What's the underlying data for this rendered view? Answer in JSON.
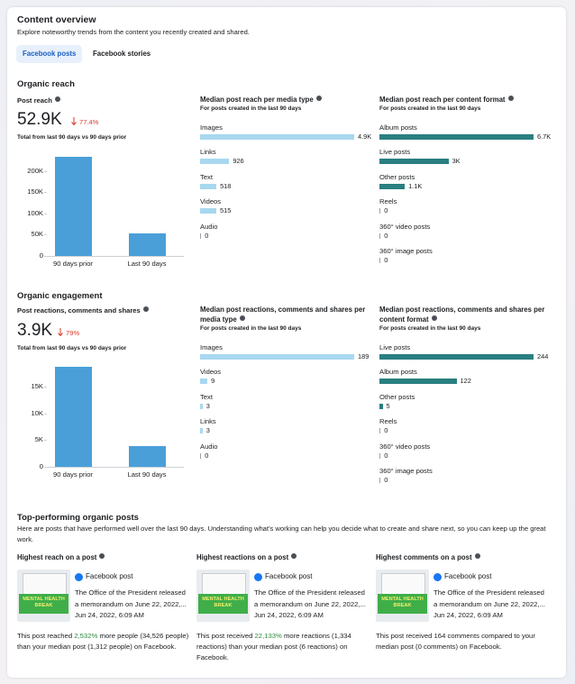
{
  "header": {
    "title": "Content overview",
    "subtitle": "Explore noteworthy trends from the content you recently created and shared."
  },
  "tabs": [
    "Facebook posts",
    "Facebook stories"
  ],
  "reach": {
    "title": "Organic reach",
    "metric_label": "Post reach",
    "metric_value": "52.9K",
    "change": "77.4%",
    "note": "Total from last 90 days vs 90 days prior"
  },
  "engagement": {
    "title": "Organic engagement",
    "metric_label": "Post reactions, comments and shares",
    "metric_value": "3.9K",
    "change": "79%",
    "note": "Total from last 90 days vs 90 days prior"
  },
  "chart_data": [
    {
      "type": "bar",
      "categories": [
        "90 days prior",
        "Last 90 days"
      ],
      "values": [
        234000,
        52900
      ],
      "color": "#4a9fd8",
      "ylim": [
        0,
        240000
      ],
      "yticks": [
        0,
        {
          "value": 50000,
          "label": "50K"
        },
        {
          "value": 100000,
          "label": "100K"
        },
        {
          "value": 150000,
          "label": "150K"
        },
        {
          "value": 200000,
          "label": "200K"
        }
      ]
    },
    {
      "type": "hbar",
      "title": "Median post reach per media type",
      "subtitle": "For posts created in the last 90 days",
      "categories": [
        "Images",
        "Links",
        "Text",
        "Videos",
        "Audio"
      ],
      "values": [
        4900,
        926,
        518,
        515,
        0
      ],
      "value_labels": [
        "4.9K",
        "926",
        "518",
        "515",
        "0"
      ],
      "color": "#a8d8ef"
    },
    {
      "type": "hbar",
      "title": "Median post reach per content format",
      "subtitle": "For posts created in the last 90 days",
      "categories": [
        "Album posts",
        "Live posts",
        "Other posts",
        "Reels",
        "360° video posts",
        "360° image posts"
      ],
      "values": [
        6700,
        3000,
        1100,
        0,
        0,
        0
      ],
      "value_labels": [
        "6.7K",
        "3K",
        "1.1K",
        "0",
        "0",
        "0"
      ],
      "color": "#2a7f80"
    },
    {
      "type": "bar",
      "categories": [
        "90 days prior",
        "Last 90 days"
      ],
      "values": [
        18600,
        3900
      ],
      "color": "#4a9fd8",
      "ylim": [
        0,
        19500
      ],
      "yticks": [
        0,
        {
          "value": 5000,
          "label": "5K"
        },
        {
          "value": 10000,
          "label": "10K"
        },
        {
          "value": 15000,
          "label": "15K"
        }
      ]
    },
    {
      "type": "hbar",
      "title": "Median post reactions, comments and shares per media type",
      "subtitle": "For posts created in the last 90 days",
      "categories": [
        "Images",
        "Videos",
        "Text",
        "Links",
        "Audio"
      ],
      "values": [
        189,
        9,
        3,
        3,
        0
      ],
      "color": "#a8d8ef"
    },
    {
      "type": "hbar",
      "title": "Median post reactions, comments and shares per content format",
      "subtitle": "For posts created in the last 90 days",
      "categories": [
        "Live posts",
        "Album posts",
        "Other posts",
        "Reels",
        "360° video posts",
        "360° image posts"
      ],
      "values": [
        244,
        122,
        5,
        0,
        0,
        0
      ],
      "color": "#2a7f80"
    }
  ],
  "top_posts": {
    "title": "Top-performing organic posts",
    "description": "Here are posts that have performed well over the last 90 days. Understanding what's working can help you decide what to create and share next, so you can keep up the great work.",
    "cards": [
      {
        "title": "Highest reach on a post",
        "source": "Facebook post",
        "text": "The Office of the President released a memorandum on June 22, 2022,...",
        "date": "Jun 24, 2022, 6:09 AM",
        "thumbnail_text": "MENTAL HEALTH BREAK",
        "summary": [
          "This post reached ",
          "2,532%",
          " more people (34,526 people) than your median post (1,312 people) on Facebook."
        ]
      },
      {
        "title": "Highest reactions on a post",
        "source": "Facebook post",
        "text": "The Office of the President released a memorandum on June 22, 2022,...",
        "date": "Jun 24, 2022, 6:09 AM",
        "thumbnail_text": "MENTAL HEALTH BREAK",
        "summary": [
          "This post received ",
          "22,133%",
          " more reactions (1,334 reactions) than your median post (6 reactions) on Facebook."
        ]
      },
      {
        "title": "Highest comments on a post",
        "source": "Facebook post",
        "text": "The Office of the President released a memorandum on June 22, 2022,...",
        "date": "Jun 24, 2022, 6:09 AM",
        "thumbnail_text": "MENTAL HEALTH BREAK",
        "summary": [
          "This post received 164 comments compared to your median post (0 comments) on Facebook."
        ]
      }
    ]
  }
}
